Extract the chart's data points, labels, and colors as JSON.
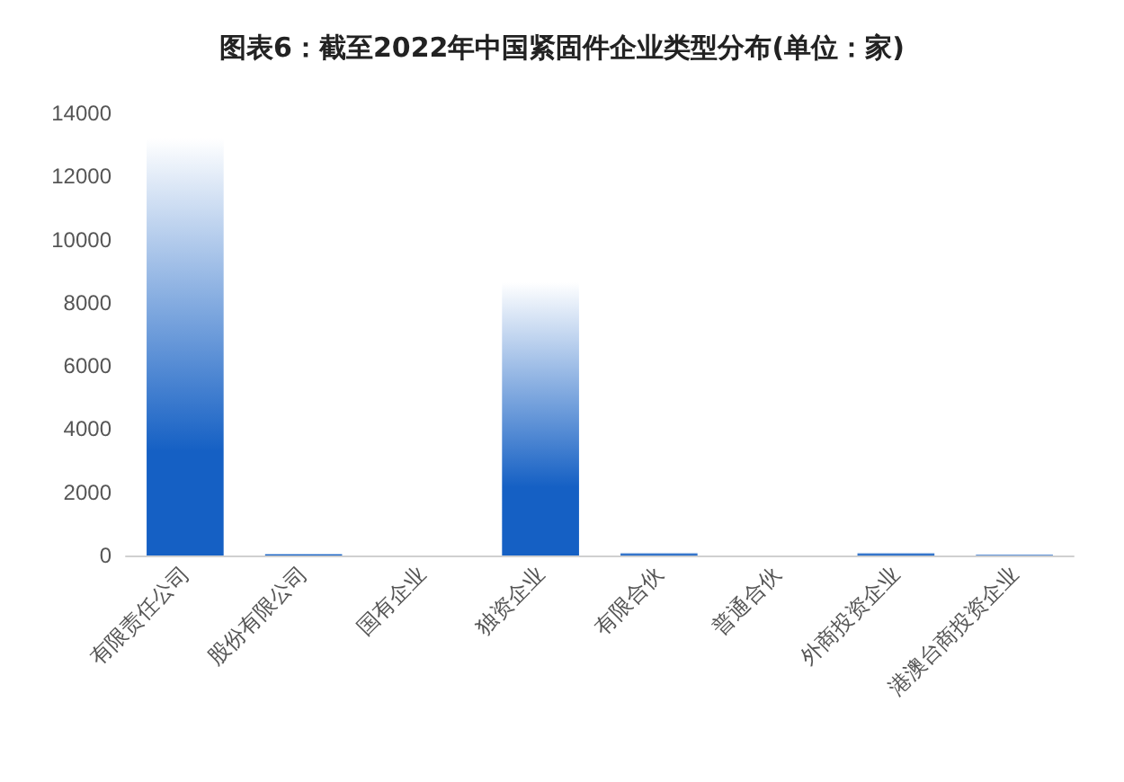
{
  "chart_data": {
    "type": "bar",
    "title": "图表6：截至2022年中国紧固件企业类型分布(单位：家)",
    "categories": [
      "有限责任公司",
      "股份有限公司",
      "国有企业",
      "独资企业",
      "有限合伙",
      "普通合伙",
      "外商投资企业",
      "港澳台商投资企业"
    ],
    "values": [
      13200,
      60,
      0,
      8650,
      100,
      0,
      100,
      30
    ],
    "color": "#1560c4",
    "ylim": [
      0,
      14000
    ],
    "yticks": [
      0,
      2000,
      4000,
      6000,
      8000,
      10000,
      12000,
      14000
    ],
    "grid": false
  }
}
